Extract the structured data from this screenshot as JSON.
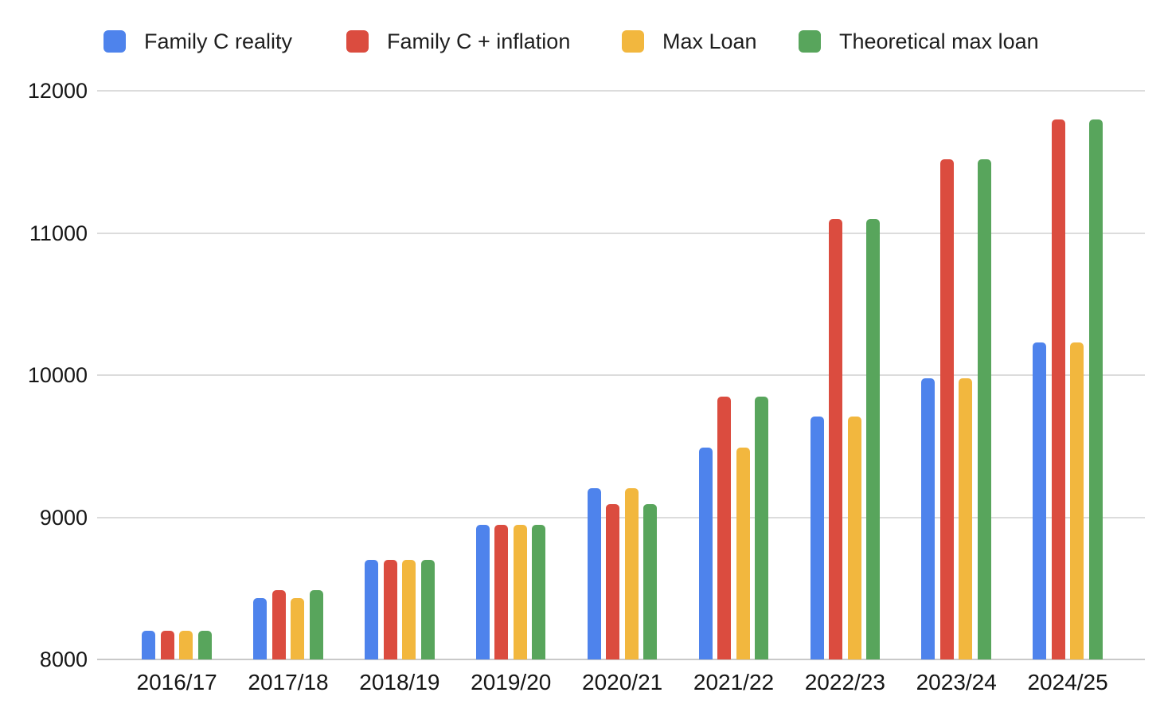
{
  "chart_data": {
    "type": "bar",
    "title": "",
    "xlabel": "",
    "ylabel": "",
    "categories": [
      "2016/17",
      "2017/18",
      "2018/19",
      "2019/20",
      "2020/21",
      "2021/22",
      "2022/23",
      "2023/24",
      "2024/25"
    ],
    "series": [
      {
        "name": "Family C reality",
        "color": "#4e83ec",
        "values": [
          8200,
          8430,
          8700,
          8944,
          9203,
          9488,
          9706,
          9978,
          10227
        ]
      },
      {
        "name": "Family C + inflation",
        "color": "#db4c3f",
        "values": [
          8200,
          8490,
          8700,
          8944,
          9090,
          9850,
          11100,
          11520,
          11800
        ]
      },
      {
        "name": "Max Loan",
        "color": "#f2b73e",
        "values": [
          8200,
          8430,
          8700,
          8944,
          9203,
          9488,
          9706,
          9978,
          10227
        ]
      },
      {
        "name": "Theoretical max loan",
        "color": "#58a55c",
        "values": [
          8200,
          8490,
          8700,
          8944,
          9090,
          9850,
          11100,
          11520,
          11800
        ]
      }
    ],
    "ylim": [
      8000,
      12000
    ],
    "yticks": [
      8000,
      9000,
      10000,
      11000,
      12000
    ],
    "grid": true,
    "legend_position": "top",
    "background": "#ffffff"
  },
  "colors": {
    "text": "#1e1e1e",
    "gridline": "#dcdcdc",
    "baseline": "#c9c9c9",
    "background": "#ffffff"
  }
}
